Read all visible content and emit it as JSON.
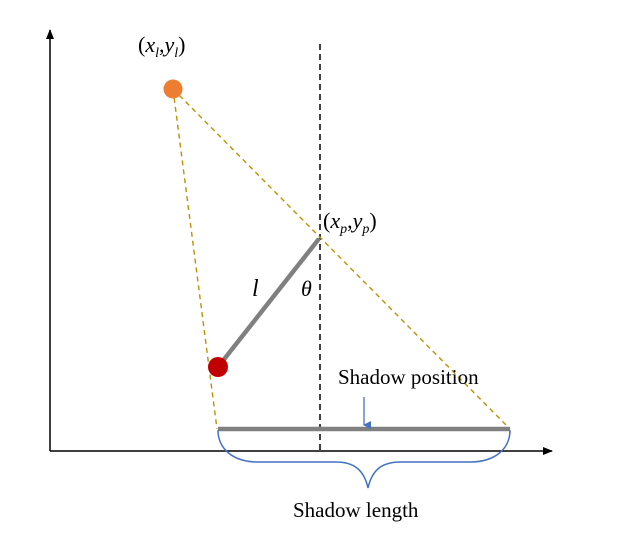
{
  "labels": {
    "light_x": "x",
    "light_x_sub": "l",
    "light_y": "y",
    "light_y_sub": "l",
    "pivot_x": "x",
    "pivot_x_sub": "p",
    "pivot_y": "y",
    "pivot_y_sub": "p",
    "open_paren": "(",
    "comma": ",",
    "close_paren": ")",
    "length_symbol": "l",
    "angle_symbol": "θ",
    "shadow_position": "Shadow position",
    "shadow_length": "Shadow length"
  },
  "colors": {
    "axis": "#000000",
    "light_source": "#ED7D31",
    "ray": "#BF9000",
    "pole": "#808080",
    "bob": "#C00000",
    "vertical": "#000000",
    "marker_arrow": "#4472C4",
    "brace": "#4472C4",
    "text": "#000000"
  }
}
